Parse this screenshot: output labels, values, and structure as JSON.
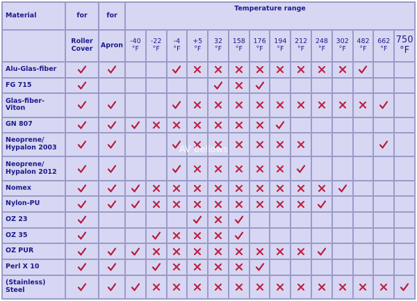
{
  "header": {
    "material": "Material",
    "for": "for",
    "temperature_range": "Temperature range",
    "roller_cover": "Roller Cover",
    "apron": "Apron"
  },
  "temperatures": [
    {
      "value": "-40",
      "unit": "°F"
    },
    {
      "value": "-22",
      "unit": "°F"
    },
    {
      "value": "-4",
      "unit": "°F"
    },
    {
      "value": "+5",
      "unit": "°F"
    },
    {
      "value": "32",
      "unit": "°F"
    },
    {
      "value": "158",
      "unit": "°F"
    },
    {
      "value": "176",
      "unit": "°F"
    },
    {
      "value": "194",
      "unit": "°F"
    },
    {
      "value": "212",
      "unit": "°F"
    },
    {
      "value": "248",
      "unit": "°F"
    },
    {
      "value": "302",
      "unit": "°F"
    },
    {
      "value": "482",
      "unit": "°F"
    },
    {
      "value": "662",
      "unit": "°F"
    },
    {
      "value": "750",
      "unit": "°F"
    }
  ],
  "rows": [
    {
      "material": [
        "Alu-Glas-fiber"
      ],
      "roller": true,
      "apron": true,
      "temps": [
        "",
        "",
        "C",
        "X",
        "X",
        "X",
        "X",
        "X",
        "X",
        "X",
        "X",
        "C",
        "",
        ""
      ]
    },
    {
      "material": [
        "FG 715"
      ],
      "roller": true,
      "apron": false,
      "temps": [
        "",
        "",
        "",
        "",
        "C",
        "X",
        "C",
        "",
        "",
        "",
        "",
        "",
        "",
        ""
      ]
    },
    {
      "material": [
        "Glas-fiber-",
        "Viton"
      ],
      "roller": true,
      "apron": true,
      "temps": [
        "",
        "",
        "C",
        "X",
        "X",
        "X",
        "X",
        "X",
        "X",
        "X",
        "X",
        "X",
        "C",
        ""
      ]
    },
    {
      "material": [
        "GN 807"
      ],
      "roller": true,
      "apron": true,
      "temps": [
        "C",
        "X",
        "X",
        "X",
        "X",
        "X",
        "X",
        "C",
        "",
        "",
        "",
        "",
        "",
        ""
      ]
    },
    {
      "material": [
        "Neoprene/",
        "Hypalon 2003"
      ],
      "roller": true,
      "apron": true,
      "temps": [
        "",
        "",
        "C",
        "X",
        "X",
        "X",
        "X",
        "X",
        "X",
        "",
        "",
        "",
        "C",
        ""
      ]
    },
    {
      "material": [
        "Neoprene/",
        "Hypalon 2012"
      ],
      "roller": true,
      "apron": true,
      "temps": [
        "",
        "",
        "C",
        "X",
        "X",
        "X",
        "X",
        "X",
        "C",
        "",
        "",
        "",
        "",
        ""
      ]
    },
    {
      "material": [
        "Nomex"
      ],
      "roller": true,
      "apron": true,
      "temps": [
        "C",
        "X",
        "X",
        "X",
        "X",
        "X",
        "X",
        "X",
        "X",
        "X",
        "C",
        "",
        "",
        ""
      ]
    },
    {
      "material": [
        "Nylon-PU"
      ],
      "roller": true,
      "apron": true,
      "temps": [
        "C",
        "X",
        "X",
        "X",
        "X",
        "X",
        "X",
        "X",
        "X",
        "C",
        "",
        "",
        "",
        ""
      ]
    },
    {
      "material": [
        "OZ 23"
      ],
      "roller": true,
      "apron": false,
      "temps": [
        "",
        "",
        "",
        "C",
        "X",
        "C",
        "",
        "",
        "",
        "",
        "",
        "",
        "",
        ""
      ]
    },
    {
      "material": [
        "OZ 35"
      ],
      "roller": true,
      "apron": false,
      "temps": [
        "",
        "C",
        "X",
        "X",
        "X",
        "C",
        "",
        "",
        "",
        "",
        "",
        "",
        "",
        ""
      ]
    },
    {
      "material": [
        "OZ PUR"
      ],
      "roller": true,
      "apron": true,
      "temps": [
        "C",
        "X",
        "X",
        "X",
        "X",
        "X",
        "X",
        "X",
        "X",
        "C",
        "",
        "",
        "",
        ""
      ]
    },
    {
      "material": [
        "Perl X 10"
      ],
      "roller": true,
      "apron": true,
      "temps": [
        "",
        "C",
        "X",
        "X",
        "X",
        "X",
        "C",
        "",
        "",
        "",
        "",
        "",
        "",
        ""
      ]
    },
    {
      "material": [
        "(Stainless)",
        "Steel"
      ],
      "roller": true,
      "apron": true,
      "temps": [
        "C",
        "X",
        "X",
        "X",
        "X",
        "X",
        "X",
        "X",
        "X",
        "X",
        "X",
        "X",
        "X",
        "C"
      ]
    }
  ],
  "watermark": "AV bellows",
  "colors": {
    "check": "#b8183a",
    "cross": "#c02040",
    "cell": "#d7d7f3",
    "grid": "#9a9ac8",
    "text": "#1a1a8a"
  },
  "icons": {
    "check": "check-icon",
    "cross": "cross-icon"
  }
}
